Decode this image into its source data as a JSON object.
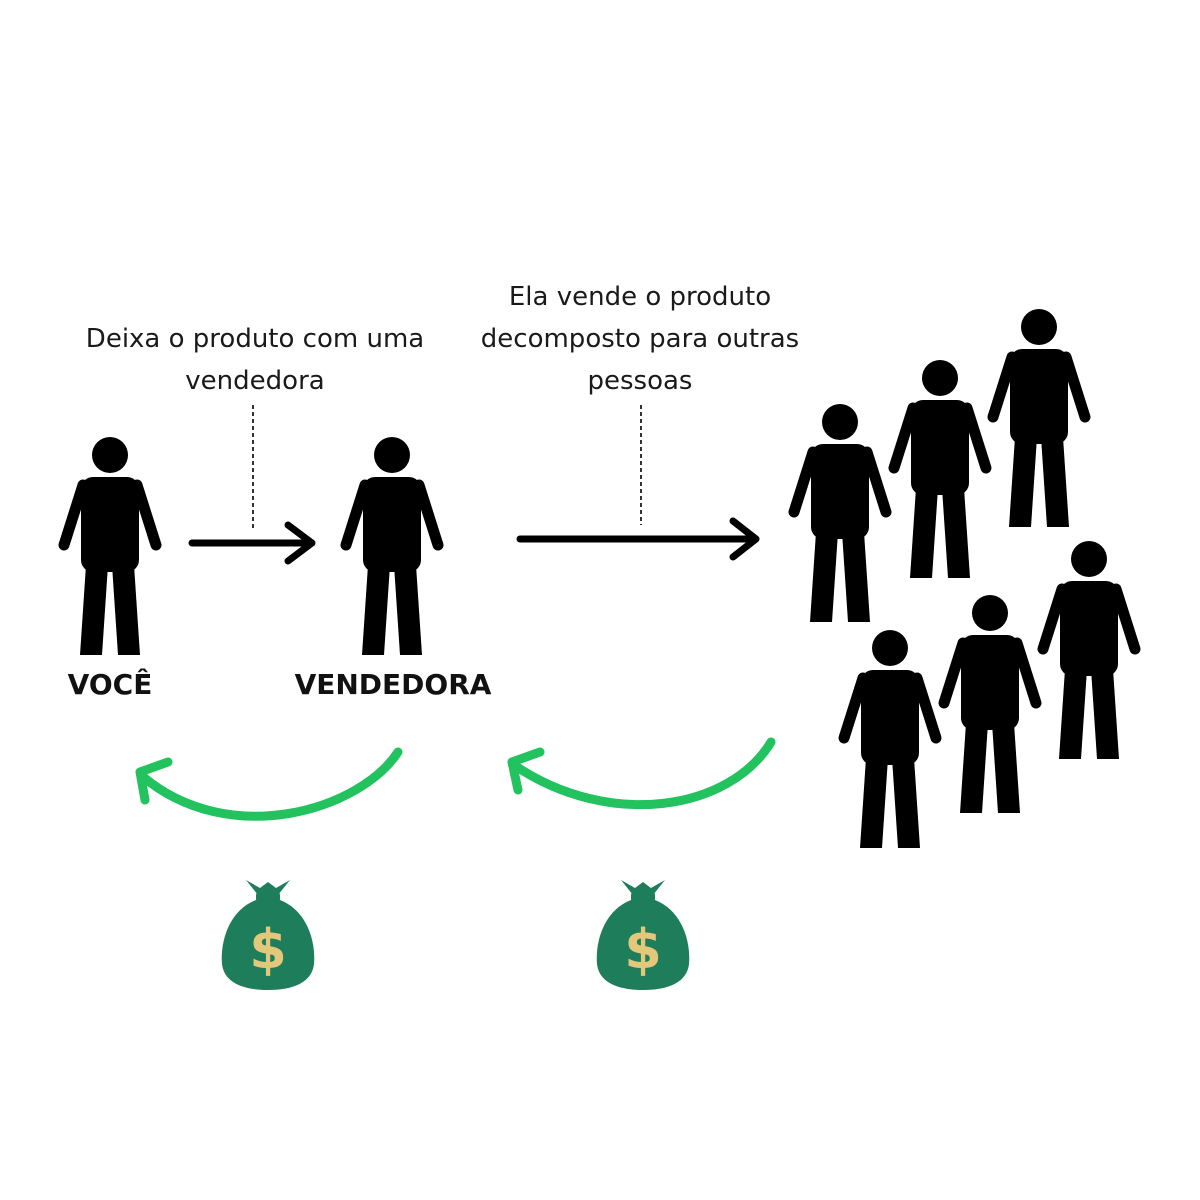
{
  "captions": {
    "step1": "Deixa o produto com uma\nvendedora",
    "step2": "Ela vende o produto\ndecomposto para outras\npessoas"
  },
  "labels": {
    "you": "VOCÊ",
    "seller": "VENDEDORA"
  },
  "money_symbol": "$",
  "icons": {
    "person": "person-icon",
    "customers": "group-of-people-icon",
    "money": "money-bag-icon",
    "flow_arrow": "arrow-right-icon",
    "payment_arrow": "curved-arrow-left-icon"
  },
  "colors": {
    "figure": "#000000",
    "payment_arrow": "#22c25f",
    "money_bag": "#1e7d5a",
    "money_symbol": "#e3c77a"
  }
}
